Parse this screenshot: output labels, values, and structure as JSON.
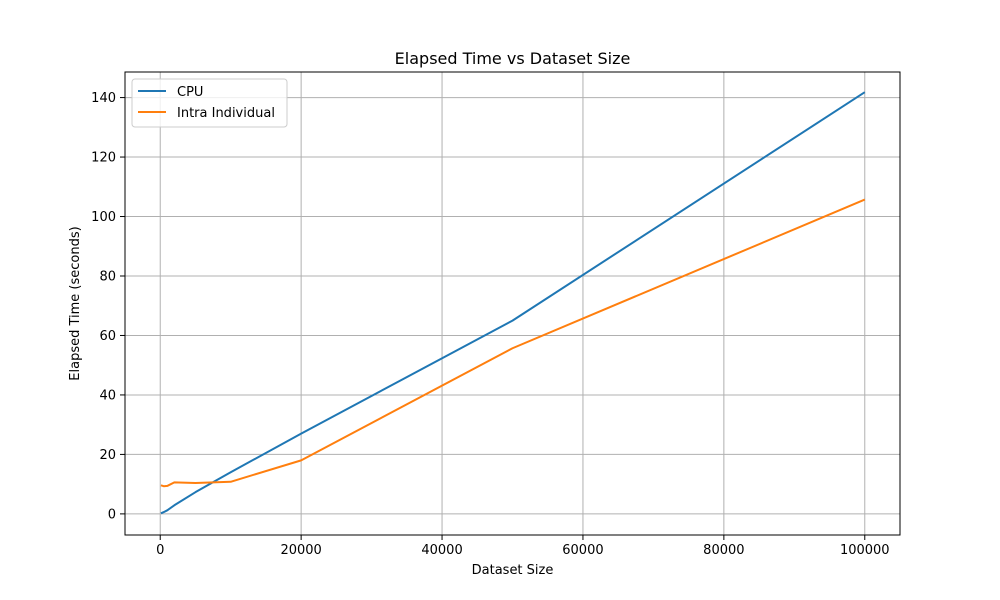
{
  "chart_data": {
    "type": "line",
    "title": "Elapsed Time vs Dataset Size",
    "xlabel": "Dataset Size",
    "ylabel": "Elapsed Time (seconds)",
    "xlim": [
      -5000,
      105000
    ],
    "ylim": [
      -7.1,
      148.6
    ],
    "xticks": [
      0,
      20000,
      40000,
      60000,
      80000,
      100000
    ],
    "yticks": [
      0,
      20,
      40,
      60,
      80,
      100,
      120,
      140
    ],
    "xtick_labels": [
      "0",
      "20000",
      "40000",
      "60000",
      "80000",
      "100000"
    ],
    "ytick_labels": [
      "0",
      "20",
      "40",
      "60",
      "80",
      "100",
      "120",
      "140"
    ],
    "grid": true,
    "legend_position": "top-left",
    "series": [
      {
        "name": "CPU",
        "color": "#1f77b4",
        "x": [
          100,
          500,
          1000,
          2000,
          5000,
          10000,
          20000,
          50000,
          100000
        ],
        "y": [
          0.2,
          0.6,
          1.2,
          2.9,
          7.3,
          14.0,
          27.0,
          65.0,
          141.8
        ]
      },
      {
        "name": "Intra Individual",
        "color": "#ff7f0e",
        "x": [
          100,
          500,
          1000,
          2000,
          5000,
          10000,
          20000,
          50000,
          100000
        ],
        "y": [
          9.6,
          9.3,
          9.4,
          10.6,
          10.4,
          10.8,
          18.0,
          55.7,
          105.7
        ]
      }
    ]
  }
}
